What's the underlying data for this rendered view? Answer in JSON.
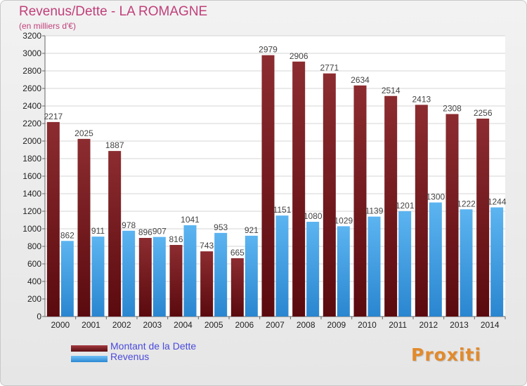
{
  "chart_data": {
    "type": "bar",
    "title": "Revenus/Dette - LA ROMAGNE",
    "subtitle": "(en milliers d'€)",
    "categories": [
      "2000",
      "2001",
      "2002",
      "2003",
      "2004",
      "2005",
      "2006",
      "2007",
      "2008",
      "2009",
      "2010",
      "2011",
      "2012",
      "2013",
      "2014"
    ],
    "series": [
      {
        "name": "Montant de la Dette",
        "color": "#7a1f24",
        "values": [
          2217,
          2025,
          1887,
          896,
          816,
          743,
          665,
          2979,
          2906,
          2771,
          2634,
          2514,
          2413,
          2308,
          2256
        ]
      },
      {
        "name": "Revenus",
        "color": "#3d9be0",
        "values": [
          862,
          911,
          978,
          907,
          1041,
          953,
          921,
          1151,
          1080,
          1029,
          1139,
          1201,
          1300,
          1222,
          1244
        ]
      }
    ],
    "ylim": [
      0,
      3200
    ],
    "ytick_step": 200,
    "grid": true,
    "legend_position": "bottom-left"
  },
  "logo": {
    "text": "Proxiti"
  }
}
